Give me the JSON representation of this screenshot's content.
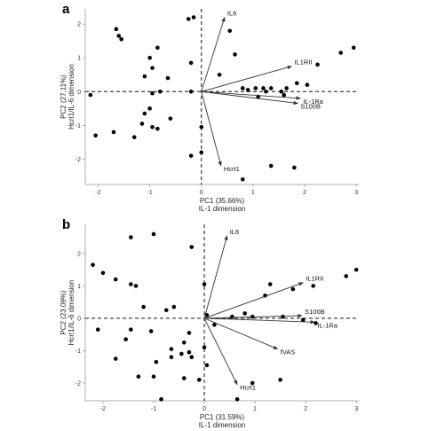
{
  "chart_data": [
    {
      "panel": "a",
      "type": "scatter",
      "xlabel": "PC1 (35.66%)",
      "xlabel2": "IL-1 dimension",
      "ylabel": "PC2 (27.11%)",
      "ylabel2": "Hcrt1/IL-6 dimension",
      "xlim": [
        -2.25,
        3.05
      ],
      "ylim": [
        -2.75,
        2.45
      ],
      "xticks": [
        -2,
        -1,
        0,
        1,
        2,
        3
      ],
      "yticks": [
        -2,
        -1,
        0,
        1,
        2
      ],
      "points": [
        [
          -1.65,
          1.85
        ],
        [
          -1.6,
          1.65
        ],
        [
          -1.55,
          1.55
        ],
        [
          -0.25,
          2.15
        ],
        [
          -0.15,
          2.2
        ],
        [
          -1.0,
          1.0
        ],
        [
          -0.85,
          1.3
        ],
        [
          -0.95,
          0.7
        ],
        [
          -0.65,
          0.4
        ],
        [
          -0.2,
          0.85
        ],
        [
          -1.1,
          0.45
        ],
        [
          -0.8,
          0.0
        ],
        [
          -0.2,
          0.0
        ],
        [
          -2.15,
          -0.1
        ],
        [
          -0.95,
          -0.05
        ],
        [
          -1.0,
          -0.5
        ],
        [
          -1.1,
          -0.65
        ],
        [
          -1.15,
          -0.95
        ],
        [
          -0.6,
          -0.8
        ],
        [
          -1.3,
          -1.35
        ],
        [
          -2.05,
          -1.3
        ],
        [
          -1.7,
          -1.2
        ],
        [
          -0.95,
          -1.05
        ],
        [
          -0.85,
          -1.1
        ],
        [
          -0.2,
          -1.9
        ],
        [
          0.0,
          -1.05
        ],
        [
          0.0,
          -1.8
        ],
        [
          0.35,
          0.5
        ],
        [
          0.55,
          1.8
        ],
        [
          0.65,
          1.1
        ],
        [
          0.8,
          0.1
        ],
        [
          0.9,
          0.05
        ],
        [
          1.05,
          0.1
        ],
        [
          1.1,
          -0.15
        ],
        [
          1.2,
          0.1
        ],
        [
          1.25,
          0.0
        ],
        [
          1.35,
          0.1
        ],
        [
          1.55,
          0.0
        ],
        [
          1.6,
          -0.1
        ],
        [
          1.65,
          0.1
        ],
        [
          1.85,
          0.25
        ],
        [
          2.05,
          0.2
        ],
        [
          2.25,
          0.8
        ],
        [
          2.7,
          1.15
        ],
        [
          2.95,
          1.3
        ],
        [
          1.35,
          -2.2
        ],
        [
          1.8,
          -2.25
        ],
        [
          0.8,
          -2.6
        ]
      ],
      "vectors": [
        {
          "label": "IL6",
          "x": 0.45,
          "y": 2.2
        },
        {
          "label": "IL1RII",
          "x": 1.75,
          "y": 0.75
        },
        {
          "label": "IL-1Ra",
          "x": 1.92,
          "y": -0.2
        },
        {
          "label": "S100B",
          "x": 1.87,
          "y": -0.35
        },
        {
          "label": "Hcrt1",
          "x": 0.38,
          "y": -2.2
        }
      ],
      "grid": false
    },
    {
      "panel": "b",
      "type": "scatter",
      "xlabel": "PC1 (31.59%)",
      "xlabel2": "IL-1 dimension",
      "ylabel": "PC2 (23.09%)",
      "ylabel2": "Hcrt1/IL-6 dimension",
      "xlim": [
        -2.35,
        3.05
      ],
      "ylim": [
        -2.55,
        2.9
      ],
      "xticks": [
        -2,
        -1,
        0,
        1,
        2,
        3
      ],
      "yticks": [
        -2,
        -1,
        0,
        1,
        2
      ],
      "points": [
        [
          -1.45,
          2.5
        ],
        [
          -1.0,
          2.6
        ],
        [
          -0.25,
          2.2
        ],
        [
          -2.2,
          1.65
        ],
        [
          -2.0,
          1.4
        ],
        [
          -1.75,
          1.2
        ],
        [
          -1.45,
          1.05
        ],
        [
          -1.35,
          1.0
        ],
        [
          -1.2,
          0.35
        ],
        [
          -0.75,
          0.25
        ],
        [
          -0.6,
          0.35
        ],
        [
          0.0,
          1.05
        ],
        [
          0.05,
          0.1
        ],
        [
          -2.1,
          -0.35
        ],
        [
          -1.45,
          -0.35
        ],
        [
          -1.05,
          -0.4
        ],
        [
          -0.3,
          -0.45
        ],
        [
          -1.55,
          -0.65
        ],
        [
          -0.4,
          -0.75
        ],
        [
          -1.75,
          -1.25
        ],
        [
          -0.65,
          -0.95
        ],
        [
          -0.45,
          -1.1
        ],
        [
          -0.3,
          -1.05
        ],
        [
          -0.25,
          -1.2
        ],
        [
          -0.65,
          -1.2
        ],
        [
          -0.95,
          -1.35
        ],
        [
          -1.3,
          -1.8
        ],
        [
          -1.0,
          -1.8
        ],
        [
          -0.4,
          -1.85
        ],
        [
          -0.1,
          -1.9
        ],
        [
          -0.85,
          -2.5
        ],
        [
          0.05,
          -1.45
        ],
        [
          0.2,
          -0.2
        ],
        [
          0.0,
          -0.9
        ],
        [
          0.65,
          -2.5
        ],
        [
          0.95,
          -2.0
        ],
        [
          0.55,
          0.05
        ],
        [
          0.8,
          0.15
        ],
        [
          0.95,
          0.05
        ],
        [
          1.2,
          0.7
        ],
        [
          1.3,
          1.05
        ],
        [
          1.55,
          0.05
        ],
        [
          1.75,
          0.9
        ],
        [
          1.95,
          -0.05
        ],
        [
          2.15,
          1.0
        ],
        [
          2.2,
          -0.15
        ],
        [
          2.8,
          1.3
        ],
        [
          3.0,
          1.5
        ],
        [
          1.5,
          -1.9
        ]
      ],
      "vectors": [
        {
          "label": "IL6",
          "x": 0.45,
          "y": 2.55
        },
        {
          "label": "IL1RII",
          "x": 1.95,
          "y": 1.1
        },
        {
          "label": "S100B",
          "x": 1.93,
          "y": 0.08
        },
        {
          "label": "IL-1Ra",
          "x": 2.18,
          "y": -0.12
        },
        {
          "label": "fVAS",
          "x": 1.45,
          "y": -0.95
        },
        {
          "label": "Hcrt1",
          "x": 0.65,
          "y": -2.05
        }
      ],
      "grid": false
    }
  ],
  "panels": {
    "a": {
      "letter": "a"
    },
    "b": {
      "letter": "b"
    }
  }
}
